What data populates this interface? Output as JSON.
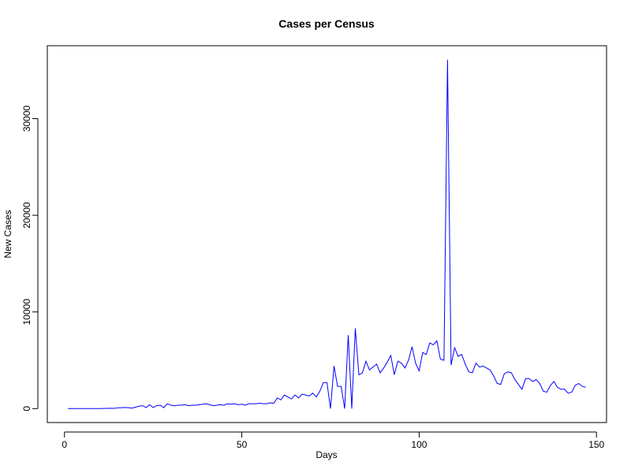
{
  "chart_data": {
    "type": "line",
    "title": "Cases per Census",
    "x_label": "Days",
    "y_label": "New Cases",
    "x": [
      1,
      2,
      3,
      4,
      5,
      6,
      7,
      8,
      9,
      10,
      11,
      12,
      13,
      14,
      15,
      16,
      17,
      18,
      19,
      20,
      21,
      22,
      23,
      24,
      25,
      26,
      27,
      28,
      29,
      30,
      31,
      32,
      33,
      34,
      35,
      36,
      37,
      38,
      39,
      40,
      41,
      42,
      43,
      44,
      45,
      46,
      47,
      48,
      49,
      50,
      51,
      52,
      53,
      54,
      55,
      56,
      57,
      58,
      59,
      60,
      61,
      62,
      63,
      64,
      65,
      66,
      67,
      68,
      69,
      70,
      71,
      72,
      73,
      74,
      75,
      76,
      77,
      78,
      79,
      80,
      81,
      82,
      83,
      84,
      85,
      86,
      87,
      88,
      89,
      90,
      91,
      92,
      93,
      94,
      95,
      96,
      97,
      98,
      99,
      100,
      101,
      102,
      103,
      104,
      105,
      106,
      107,
      108,
      109,
      110,
      111,
      112,
      113,
      114,
      115,
      116,
      117,
      118,
      119,
      120,
      121,
      122,
      123,
      124,
      125,
      126,
      127,
      128,
      129,
      130,
      131,
      132,
      133,
      134,
      135,
      136,
      137,
      138,
      139,
      140,
      141,
      142,
      143,
      144,
      145,
      146,
      147
    ],
    "series": [
      {
        "name": "New Cases",
        "color": "#0000ff",
        "values": [
          0,
          0,
          0,
          0,
          0,
          0,
          0,
          0,
          0,
          0,
          10,
          20,
          30,
          20,
          80,
          100,
          120,
          100,
          50,
          150,
          250,
          300,
          100,
          400,
          100,
          300,
          350,
          100,
          500,
          350,
          300,
          350,
          350,
          400,
          300,
          350,
          350,
          400,
          450,
          500,
          400,
          300,
          350,
          400,
          350,
          500,
          450,
          500,
          400,
          450,
          350,
          500,
          500,
          500,
          550,
          500,
          500,
          600,
          550,
          1100,
          900,
          1400,
          1200,
          1000,
          1400,
          1100,
          1500,
          1400,
          1300,
          1600,
          1200,
          1800,
          2700,
          2700,
          0,
          4400,
          2300,
          2300,
          0,
          7600,
          0,
          8300,
          3500,
          3700,
          4900,
          4000,
          4300,
          4600,
          3700,
          4200,
          4800,
          5500,
          3500,
          4900,
          4700,
          4200,
          5000,
          6400,
          4700,
          3900,
          5800,
          5600,
          6800,
          6600,
          7000,
          5100,
          5000,
          36100,
          4500,
          6300,
          5400,
          5600,
          4600,
          3800,
          3700,
          4700,
          4300,
          4400,
          4200,
          4000,
          3400,
          2600,
          2500,
          3600,
          3800,
          3700,
          3000,
          2500,
          2000,
          3100,
          3100,
          2800,
          3000,
          2600,
          1800,
          1700,
          2400,
          2800,
          2200,
          2000,
          2000,
          1600,
          1700,
          2400,
          2600,
          2300,
          2200
        ]
      }
    ],
    "xlim": [
      -4.84,
      152.84
    ],
    "ylim": [
      -1444,
      37544
    ],
    "xticks": [
      0,
      50,
      100,
      150
    ],
    "yticks": [
      0,
      10000,
      20000,
      30000
    ]
  }
}
